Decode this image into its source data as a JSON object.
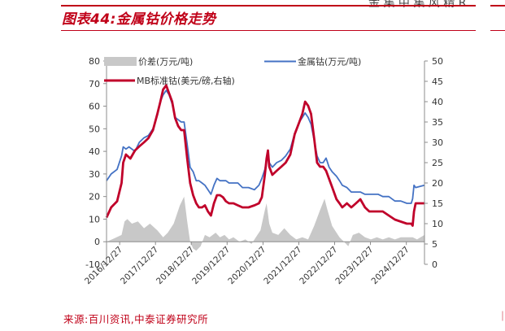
{
  "header": {
    "top_right_text": "金 集 中 集 风 精 R",
    "figure_title": "图表44:金属钴价格走势"
  },
  "footer": {
    "source": "来源:百川资讯,中泰证券研究所"
  },
  "colors": {
    "accent": "#c00018",
    "spread": "#c8c8c8",
    "cobalt_metal": "#4472c4",
    "mb_cobalt": "#c0002a"
  },
  "chart_data": {
    "type": "line",
    "legend_placement": "top",
    "legend": {
      "spread": "价差(万元/吨)",
      "cobalt_metal": "金属钴(万元/吨)",
      "mb_cobalt": "MB标准钴(美元/磅,右轴)"
    },
    "x_tick_labels": [
      "2016/12/27",
      "2017/12/27",
      "2018/12/27",
      "2019/12/27",
      "2020/12/27",
      "2021/12/27",
      "2022/12/27",
      "2023/12/27",
      "2024/12/27"
    ],
    "x_range": [
      "2016-08-15",
      "2025-06-30"
    ],
    "y_left": {
      "min": -10,
      "max": 80,
      "ticks": [
        -10,
        0,
        10,
        20,
        30,
        40,
        50,
        60,
        70,
        80
      ]
    },
    "y_right": {
      "min": 0,
      "max": 50,
      "ticks": [
        0,
        5,
        10,
        15,
        20,
        25,
        30,
        35,
        40,
        45,
        50
      ]
    },
    "grid": false,
    "series": [
      {
        "key": "spread",
        "name": "价差(万元/吨)",
        "type": "area",
        "axis": "left",
        "points": [
          [
            "2016-08-15",
            0
          ],
          [
            "2016-11-01",
            1.5
          ],
          [
            "2017-01-15",
            3
          ],
          [
            "2017-02-15",
            9
          ],
          [
            "2017-03-15",
            10
          ],
          [
            "2017-05-01",
            8
          ],
          [
            "2017-07-01",
            9
          ],
          [
            "2017-09-01",
            6
          ],
          [
            "2017-11-01",
            8
          ],
          [
            "2018-01-15",
            5
          ],
          [
            "2018-03-15",
            2
          ],
          [
            "2018-05-01",
            4
          ],
          [
            "2018-07-01",
            8
          ],
          [
            "2018-09-01",
            16
          ],
          [
            "2018-10-15",
            20
          ],
          [
            "2018-11-15",
            9
          ],
          [
            "2018-12-15",
            0
          ],
          [
            "2019-01-15",
            -3
          ],
          [
            "2019-02-15",
            -4
          ],
          [
            "2019-04-01",
            -2
          ],
          [
            "2019-05-15",
            3
          ],
          [
            "2019-07-01",
            2
          ],
          [
            "2019-09-01",
            4
          ],
          [
            "2019-10-15",
            2
          ],
          [
            "2019-12-01",
            3
          ],
          [
            "2020-01-15",
            1
          ],
          [
            "2020-03-01",
            2
          ],
          [
            "2020-05-01",
            0
          ],
          [
            "2020-07-01",
            1
          ],
          [
            "2020-09-01",
            -1
          ],
          [
            "2020-10-15",
            2
          ],
          [
            "2020-12-01",
            5
          ],
          [
            "2021-01-15",
            14
          ],
          [
            "2021-02-01",
            17
          ],
          [
            "2021-03-01",
            8
          ],
          [
            "2021-04-01",
            4
          ],
          [
            "2021-06-01",
            3
          ],
          [
            "2021-08-01",
            6
          ],
          [
            "2021-10-01",
            3
          ],
          [
            "2021-12-01",
            1
          ],
          [
            "2022-02-01",
            2
          ],
          [
            "2022-04-01",
            1
          ],
          [
            "2022-06-01",
            7
          ],
          [
            "2022-08-01",
            14
          ],
          [
            "2022-09-15",
            19
          ],
          [
            "2022-10-15",
            14
          ],
          [
            "2022-12-01",
            7
          ],
          [
            "2023-01-15",
            4
          ],
          [
            "2023-02-15",
            2
          ],
          [
            "2023-04-01",
            0
          ],
          [
            "2023-05-15",
            -2
          ],
          [
            "2023-07-01",
            3
          ],
          [
            "2023-09-01",
            4
          ],
          [
            "2023-11-01",
            2
          ],
          [
            "2024-01-01",
            1
          ],
          [
            "2024-03-01",
            2
          ],
          [
            "2024-05-01",
            1
          ],
          [
            "2024-07-01",
            2
          ],
          [
            "2024-09-01",
            1
          ],
          [
            "2024-11-01",
            2
          ],
          [
            "2025-01-15",
            2
          ],
          [
            "2025-03-01",
            2
          ],
          [
            "2025-04-15",
            1
          ],
          [
            "2025-06-30",
            3
          ]
        ]
      },
      {
        "key": "cobalt_metal",
        "name": "金属钴(万元/吨)",
        "type": "line",
        "axis": "left",
        "points": [
          [
            "2016-08-15",
            27
          ],
          [
            "2016-10-01",
            30
          ],
          [
            "2016-12-01",
            32
          ],
          [
            "2017-01-15",
            38
          ],
          [
            "2017-02-01",
            42
          ],
          [
            "2017-03-01",
            41
          ],
          [
            "2017-04-01",
            42
          ],
          [
            "2017-06-01",
            40
          ],
          [
            "2017-07-15",
            44
          ],
          [
            "2017-09-01",
            46
          ],
          [
            "2017-10-15",
            47
          ],
          [
            "2017-12-01",
            50
          ],
          [
            "2018-01-15",
            56
          ],
          [
            "2018-02-15",
            62
          ],
          [
            "2018-03-15",
            65
          ],
          [
            "2018-04-15",
            67
          ],
          [
            "2018-05-15",
            65
          ],
          [
            "2018-06-15",
            61
          ],
          [
            "2018-07-15",
            55
          ],
          [
            "2018-08-15",
            54
          ],
          [
            "2018-09-15",
            53
          ],
          [
            "2018-10-15",
            53
          ],
          [
            "2018-11-15",
            43
          ],
          [
            "2018-12-15",
            33
          ],
          [
            "2019-01-15",
            31
          ],
          [
            "2019-02-15",
            27
          ],
          [
            "2019-03-15",
            27
          ],
          [
            "2019-04-15",
            26
          ],
          [
            "2019-05-15",
            25
          ],
          [
            "2019-06-15",
            23
          ],
          [
            "2019-07-15",
            21
          ],
          [
            "2019-08-15",
            25
          ],
          [
            "2019-09-15",
            28
          ],
          [
            "2019-10-15",
            27
          ],
          [
            "2019-11-15",
            27
          ],
          [
            "2019-12-15",
            27
          ],
          [
            "2020-01-15",
            26
          ],
          [
            "2020-03-01",
            26
          ],
          [
            "2020-04-15",
            26
          ],
          [
            "2020-06-01",
            24
          ],
          [
            "2020-08-01",
            24
          ],
          [
            "2020-10-01",
            23
          ],
          [
            "2020-11-15",
            25
          ],
          [
            "2020-12-15",
            28
          ],
          [
            "2021-01-15",
            32
          ],
          [
            "2021-02-01",
            36
          ],
          [
            "2021-02-15",
            39
          ],
          [
            "2021-03-01",
            35
          ],
          [
            "2021-04-01",
            33
          ],
          [
            "2021-05-15",
            35
          ],
          [
            "2021-07-01",
            36
          ],
          [
            "2021-08-15",
            38
          ],
          [
            "2021-10-01",
            41
          ],
          [
            "2021-11-15",
            48
          ],
          [
            "2022-01-01",
            53
          ],
          [
            "2022-02-01",
            55
          ],
          [
            "2022-03-01",
            57
          ],
          [
            "2022-04-01",
            55
          ],
          [
            "2022-05-01",
            52
          ],
          [
            "2022-06-01",
            45
          ],
          [
            "2022-07-01",
            38
          ],
          [
            "2022-08-01",
            35
          ],
          [
            "2022-09-01",
            35
          ],
          [
            "2022-10-01",
            37
          ],
          [
            "2022-11-01",
            33
          ],
          [
            "2022-12-01",
            31
          ],
          [
            "2023-01-15",
            29
          ],
          [
            "2023-02-15",
            27
          ],
          [
            "2023-03-15",
            25
          ],
          [
            "2023-05-01",
            24
          ],
          [
            "2023-06-15",
            22
          ],
          [
            "2023-08-01",
            22
          ],
          [
            "2023-09-15",
            22
          ],
          [
            "2023-11-01",
            21
          ],
          [
            "2023-12-15",
            21
          ],
          [
            "2024-02-01",
            21
          ],
          [
            "2024-03-15",
            21
          ],
          [
            "2024-05-01",
            20
          ],
          [
            "2024-07-01",
            20
          ],
          [
            "2024-09-01",
            18
          ],
          [
            "2024-11-01",
            18
          ],
          [
            "2025-01-01",
            17
          ],
          [
            "2025-02-15",
            17
          ],
          [
            "2025-03-01",
            19
          ],
          [
            "2025-03-15",
            25
          ],
          [
            "2025-04-01",
            24
          ],
          [
            "2025-06-30",
            25
          ]
        ]
      },
      {
        "key": "mb_cobalt",
        "name": "MB标准钴(美元/磅,右轴)",
        "type": "line",
        "axis": "right",
        "points": [
          [
            "2016-08-15",
            11.5
          ],
          [
            "2016-10-01",
            14
          ],
          [
            "2016-12-01",
            15.5
          ],
          [
            "2017-01-15",
            20
          ],
          [
            "2017-02-01",
            25
          ],
          [
            "2017-03-01",
            27
          ],
          [
            "2017-04-15",
            26
          ],
          [
            "2017-06-01",
            28
          ],
          [
            "2017-07-15",
            29
          ],
          [
            "2017-09-01",
            30
          ],
          [
            "2017-10-15",
            31
          ],
          [
            "2017-12-01",
            33
          ],
          [
            "2018-01-15",
            37
          ],
          [
            "2018-02-15",
            40
          ],
          [
            "2018-03-15",
            43
          ],
          [
            "2018-04-15",
            44
          ],
          [
            "2018-05-15",
            42
          ],
          [
            "2018-06-15",
            40
          ],
          [
            "2018-07-15",
            36
          ],
          [
            "2018-08-15",
            34
          ],
          [
            "2018-09-15",
            33
          ],
          [
            "2018-10-15",
            33
          ],
          [
            "2018-11-15",
            26
          ],
          [
            "2018-12-15",
            20
          ],
          [
            "2019-01-15",
            17
          ],
          [
            "2019-02-15",
            15
          ],
          [
            "2019-03-15",
            14
          ],
          [
            "2019-04-15",
            14
          ],
          [
            "2019-05-15",
            14.5
          ],
          [
            "2019-06-15",
            13
          ],
          [
            "2019-07-15",
            12
          ],
          [
            "2019-08-15",
            15
          ],
          [
            "2019-09-15",
            17
          ],
          [
            "2019-10-15",
            17
          ],
          [
            "2019-11-15",
            16.5
          ],
          [
            "2019-12-15",
            15.5
          ],
          [
            "2020-01-15",
            15
          ],
          [
            "2020-03-01",
            15
          ],
          [
            "2020-04-15",
            14.5
          ],
          [
            "2020-06-01",
            14
          ],
          [
            "2020-08-01",
            14
          ],
          [
            "2020-10-01",
            14.5
          ],
          [
            "2020-11-15",
            15
          ],
          [
            "2020-12-15",
            16.5
          ],
          [
            "2021-01-15",
            22
          ],
          [
            "2021-02-01",
            26
          ],
          [
            "2021-02-15",
            28
          ],
          [
            "2021-03-01",
            24
          ],
          [
            "2021-04-01",
            22
          ],
          [
            "2021-05-15",
            23
          ],
          [
            "2021-07-01",
            24
          ],
          [
            "2021-08-15",
            25
          ],
          [
            "2021-10-01",
            27
          ],
          [
            "2021-11-15",
            32
          ],
          [
            "2022-01-01",
            35
          ],
          [
            "2022-02-01",
            37
          ],
          [
            "2022-03-01",
            40
          ],
          [
            "2022-04-01",
            39
          ],
          [
            "2022-05-01",
            37
          ],
          [
            "2022-06-01",
            31
          ],
          [
            "2022-07-01",
            25
          ],
          [
            "2022-08-01",
            24
          ],
          [
            "2022-09-01",
            24
          ],
          [
            "2022-10-01",
            23
          ],
          [
            "2022-11-01",
            21
          ],
          [
            "2022-12-01",
            19
          ],
          [
            "2023-01-15",
            16
          ],
          [
            "2023-02-15",
            15
          ],
          [
            "2023-03-15",
            14
          ],
          [
            "2023-05-01",
            15
          ],
          [
            "2023-06-15",
            14
          ],
          [
            "2023-08-01",
            15
          ],
          [
            "2023-09-15",
            16
          ],
          [
            "2023-11-01",
            14
          ],
          [
            "2023-12-15",
            13
          ],
          [
            "2024-02-01",
            13
          ],
          [
            "2024-03-15",
            13
          ],
          [
            "2024-05-01",
            13
          ],
          [
            "2024-07-01",
            12
          ],
          [
            "2024-09-01",
            11
          ],
          [
            "2024-11-01",
            10.5
          ],
          [
            "2025-01-01",
            10
          ],
          [
            "2025-02-15",
            10
          ],
          [
            "2025-03-01",
            9.5
          ],
          [
            "2025-03-15",
            13
          ],
          [
            "2025-04-01",
            15
          ],
          [
            "2025-06-30",
            15
          ]
        ]
      }
    ]
  }
}
